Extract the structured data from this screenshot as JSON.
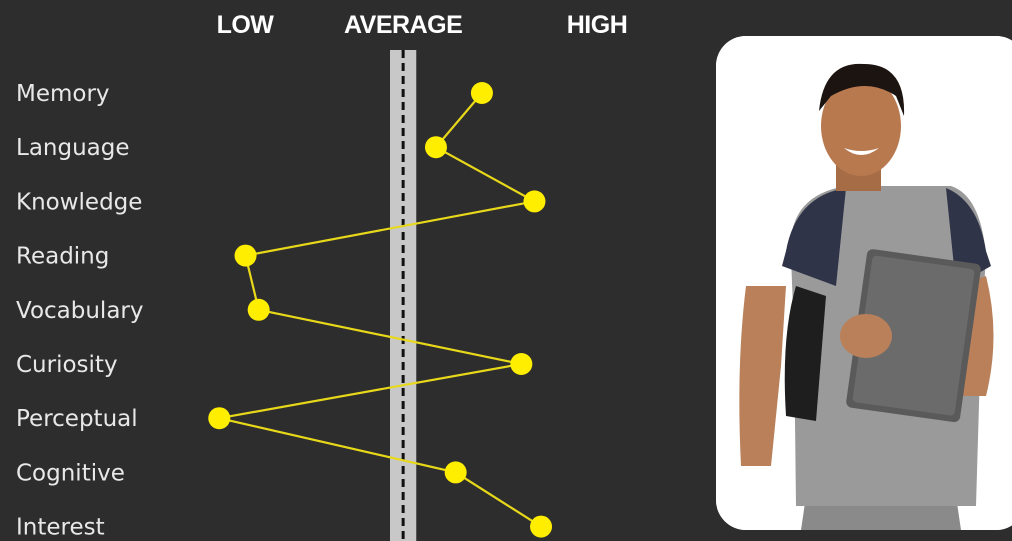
{
  "chart_data": {
    "type": "line",
    "x_axis_labels": [
      "LOW",
      "AVERAGE",
      "HIGH"
    ],
    "categories": [
      "Memory",
      "Language",
      "Knowledge",
      "Reading",
      "Vocabulary",
      "Curiosity",
      "Perceptual",
      "Cognitive",
      "Interest"
    ],
    "values": [
      0.6,
      0.25,
      1.0,
      -1.2,
      -1.1,
      0.9,
      -1.4,
      0.4,
      1.05
    ],
    "xlim": [
      -1.6,
      1.4
    ],
    "average_band": [
      -0.1,
      0.1
    ],
    "grid": false,
    "legend": "none",
    "colors": {
      "line": "#e8d81a",
      "marker": "#ffee00",
      "band": "#c8c8c8",
      "average_line": "#111111",
      "background": "#2d2d2d"
    }
  },
  "photo": {
    "icon": "student-holding-laptop-photo"
  }
}
